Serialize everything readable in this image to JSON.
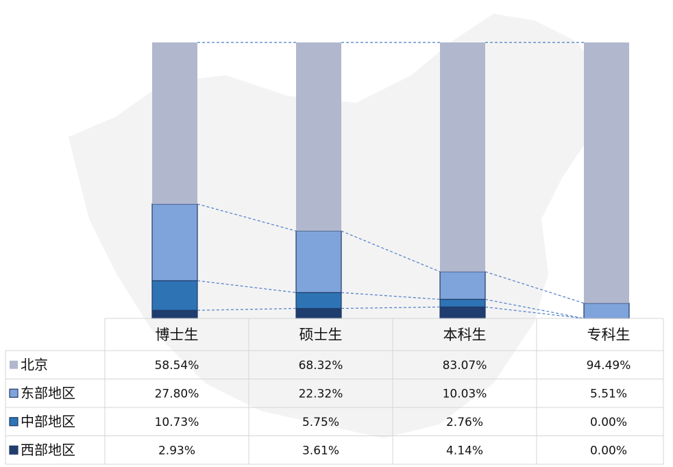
{
  "chart_data": {
    "type": "stacked_bar",
    "categories": [
      "博士生",
      "硕士生",
      "本科生",
      "专科生"
    ],
    "series": [
      {
        "name": "北京",
        "color": "#b1b7cd",
        "values": [
          58.54,
          68.32,
          83.07,
          94.49
        ],
        "value_labels": [
          "58.54%",
          "68.32%",
          "83.07%",
          "94.49%"
        ]
      },
      {
        "name": "东部地区",
        "color": "#7fa4dc",
        "values": [
          27.8,
          22.32,
          10.03,
          5.51
        ],
        "value_labels": [
          "27.80%",
          "22.32%",
          "10.03%",
          "5.51%"
        ]
      },
      {
        "name": "中部地区",
        "color": "#2e74b5",
        "values": [
          10.73,
          5.75,
          2.76,
          0.0
        ],
        "value_labels": [
          "10.73%",
          "5.75%",
          "2.76%",
          "0.00%"
        ]
      },
      {
        "name": "西部地区",
        "color": "#1f3d6e",
        "values": [
          2.93,
          3.61,
          4.14,
          0.0
        ],
        "value_labels": [
          "2.93%",
          "3.61%",
          "4.14%",
          "0.00%"
        ]
      }
    ]
  }
}
